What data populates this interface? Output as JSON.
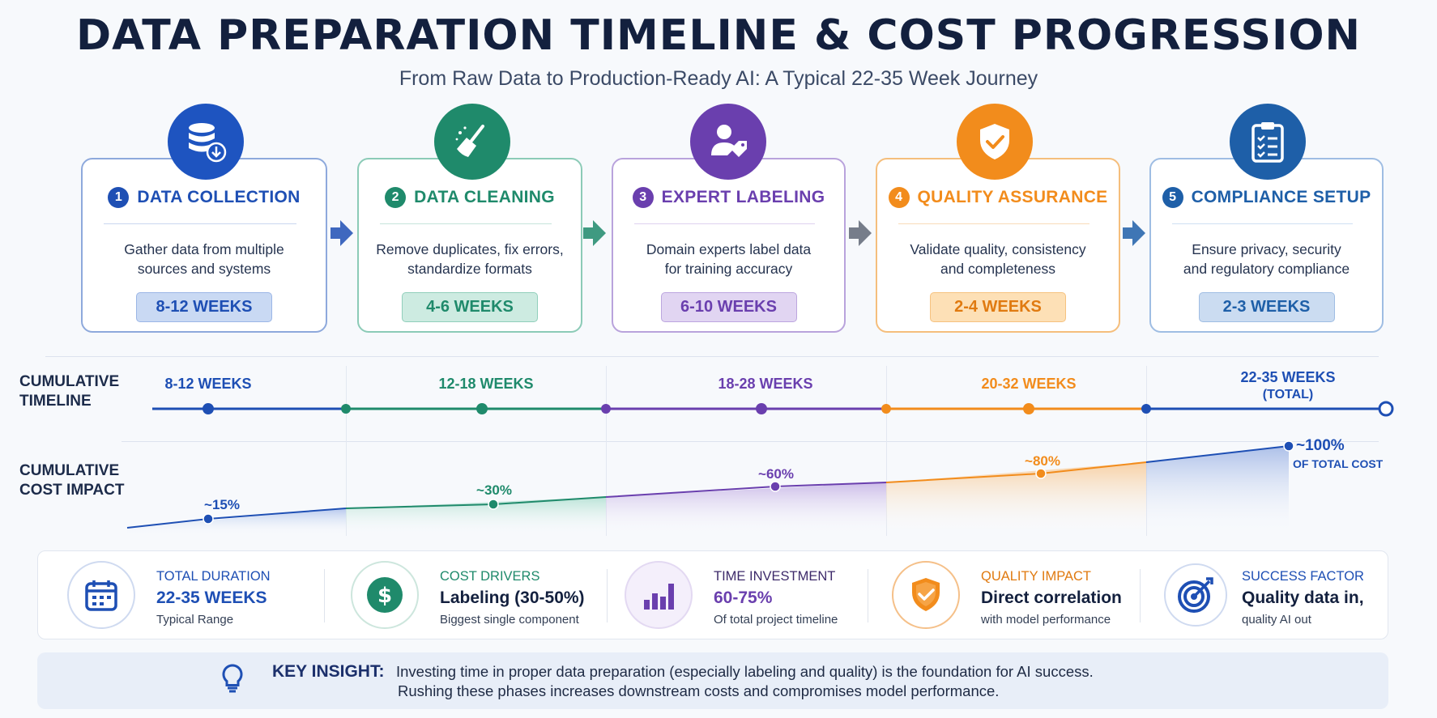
{
  "header": {
    "title": "DATA PREPARATION TIMELINE & COST PROGRESSION",
    "subtitle": "From Raw Data to Production-Ready AI: A Typical 22-35 Week Journey"
  },
  "phases": [
    {
      "num": "1",
      "title": "DATA COLLECTION",
      "desc_line1": "Gather data from multiple",
      "desc_line2": "sources and systems",
      "duration": "8-12 WEEKS",
      "color": "#1e4fb4",
      "icon": "database-download-icon"
    },
    {
      "num": "2",
      "title": "DATA CLEANING",
      "desc_line1": "Remove duplicates, fix errors,",
      "desc_line2": "standardize formats",
      "duration": "4-6 WEEKS",
      "color": "#1f8a6b",
      "icon": "broom-icon"
    },
    {
      "num": "3",
      "title": "EXPERT LABELING",
      "desc_line1": "Domain experts label data",
      "desc_line2": "for training accuracy",
      "duration": "6-10 WEEKS",
      "color": "#6a3fae",
      "icon": "person-tag-icon"
    },
    {
      "num": "4",
      "title": "QUALITY ASSURANCE",
      "desc_line1": "Validate quality, consistency",
      "desc_line2": "and completeness",
      "duration": "2-4 WEEKS",
      "color": "#f28c1c",
      "icon": "shield-check-icon"
    },
    {
      "num": "5",
      "title": "COMPLIANCE SETUP",
      "desc_line1": "Ensure privacy, security",
      "desc_line2": "and regulatory compliance",
      "duration": "2-3 WEEKS",
      "color": "#1e5fa8",
      "icon": "clipboard-checklist-icon"
    }
  ],
  "timeline": {
    "row_label_line1": "CUMULATIVE",
    "row_label_line2": "TIMELINE",
    "points": [
      {
        "label": "8-12 WEEKS"
      },
      {
        "label": "12-18 WEEKS"
      },
      {
        "label": "18-28 WEEKS"
      },
      {
        "label": "20-32 WEEKS"
      },
      {
        "label": "22-35 WEEKS",
        "sublabel": "(TOTAL)"
      }
    ]
  },
  "cost": {
    "row_label_line1": "CUMULATIVE",
    "row_label_line2": "COST IMPACT",
    "points": [
      {
        "label": "~15%",
        "value": 15
      },
      {
        "label": "~30%",
        "value": 30
      },
      {
        "label": "~60%",
        "value": 60
      },
      {
        "label": "~80%",
        "value": 80
      },
      {
        "label": "~100%",
        "sublabel": "OF TOTAL COST",
        "value": 100
      }
    ]
  },
  "stats": [
    {
      "label": "TOTAL DURATION",
      "value": "22-35 WEEKS",
      "sub": "Typical Range",
      "color": "#1e4fb4",
      "icon": "calendar-icon"
    },
    {
      "label": "COST DRIVERS",
      "value": "Labeling (30-50%)",
      "sub": "Biggest single component",
      "color": "#1f8a6b",
      "icon": "dollar-icon"
    },
    {
      "label": "TIME INVESTMENT",
      "value": "60-75%",
      "sub": "Of total project timeline",
      "color": "#6a3fae",
      "icon": "bar-chart-icon"
    },
    {
      "label": "QUALITY IMPACT",
      "value": "Direct correlation",
      "sub": "with model performance",
      "color": "#f28c1c",
      "icon": "shield-check-icon"
    },
    {
      "label": "SUCCESS FACTOR",
      "value": "Quality data in,",
      "sub": "quality AI out",
      "color": "#1e4fb4",
      "icon": "target-icon"
    }
  ],
  "insight": {
    "label": "KEY INSIGHT:",
    "line1": "Investing time in proper data preparation (especially labeling and quality) is the foundation for AI success.",
    "line2": "Rushing these phases increases downstream costs and compromises model performance."
  }
}
